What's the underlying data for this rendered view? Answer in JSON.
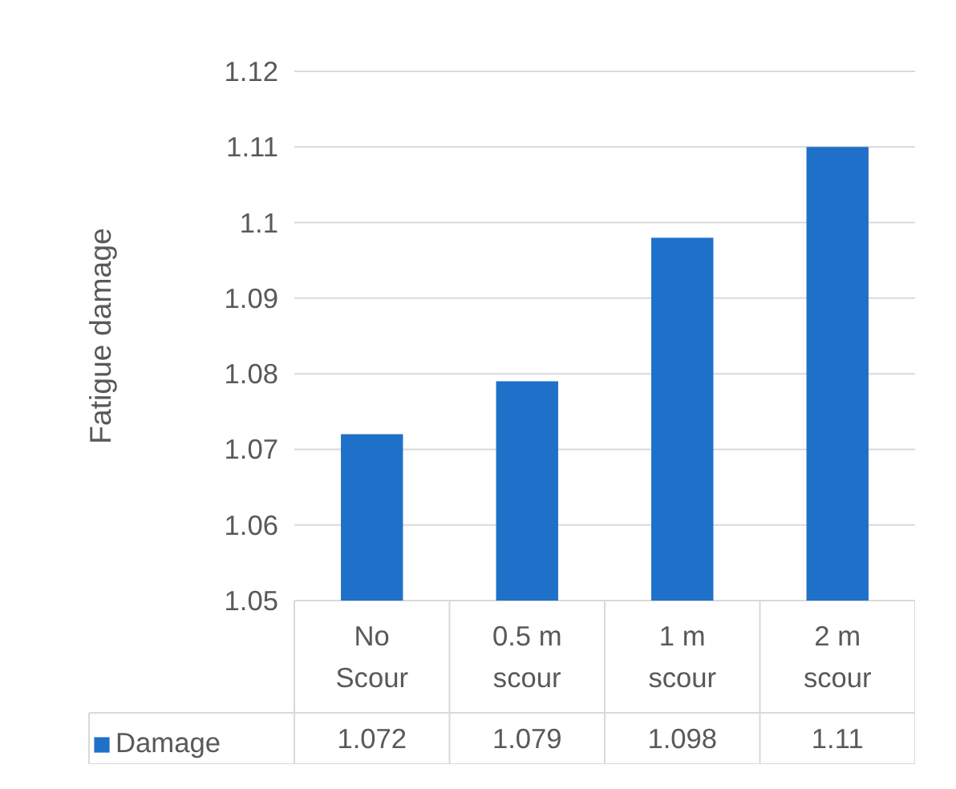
{
  "chart_data": {
    "type": "bar",
    "ylabel": "Fatigue damage",
    "categories": [
      "No Scour",
      "0.5 m scour",
      "1 m scour",
      "2 m scour"
    ],
    "series": [
      {
        "name": "Damage",
        "color": "#1f70c8",
        "values": [
          1.072,
          1.079,
          1.098,
          1.11
        ]
      }
    ],
    "ylim": [
      1.05,
      1.12
    ],
    "yticks": [
      1.05,
      1.06,
      1.07,
      1.08,
      1.09,
      1.1,
      1.11,
      1.12
    ],
    "grid": "y",
    "data_labels": true,
    "legend": "bottom"
  }
}
